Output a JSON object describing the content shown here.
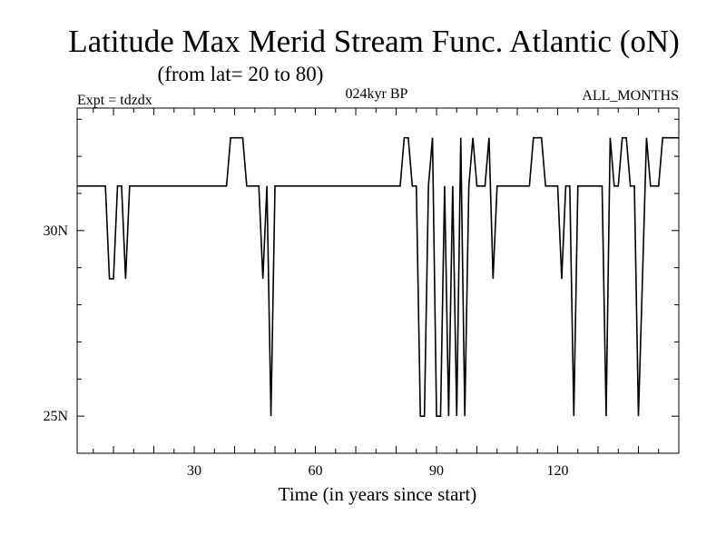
{
  "chart_data": {
    "type": "line",
    "title": "Latitude Max Merid Stream Func. Atlantic (oN)",
    "subtitle": "(from lat= 20 to 80)",
    "experiment_label": "Expt = tdzdx",
    "period_label": "024kyr BP",
    "months_label": "ALL_MONTHS",
    "xlabel": "Time (in years since start)",
    "ylabel": "",
    "xlim": [
      1,
      150
    ],
    "ylim": [
      24,
      33.3
    ],
    "x_ticks": [
      30,
      60,
      90,
      120
    ],
    "x_tick_labels": [
      "30",
      "60",
      "90",
      "120"
    ],
    "y_ticks": [
      25,
      30
    ],
    "y_tick_labels": [
      "25N",
      "30N"
    ],
    "series": [
      {
        "name": "Latitude Max Merid Stream Func. Atlantic",
        "x": [
          1,
          8,
          9,
          10,
          11,
          12,
          13,
          14,
          15,
          38,
          39,
          42,
          43,
          44,
          45,
          46,
          47,
          48,
          49,
          50,
          81,
          82,
          83,
          84,
          85,
          86,
          87,
          88,
          89,
          90,
          91,
          92,
          93,
          94,
          95,
          96,
          97,
          98,
          99,
          100,
          101,
          102,
          103,
          104,
          105,
          106,
          107,
          113,
          114,
          116,
          117,
          118,
          119,
          120,
          121,
          122,
          123,
          124,
          125,
          131,
          132,
          133,
          134,
          135,
          136,
          137,
          138,
          139,
          140,
          141,
          142,
          143,
          144,
          145,
          146,
          147,
          148,
          149,
          150
        ],
        "y": [
          31.2,
          31.2,
          28.7,
          28.7,
          31.2,
          31.2,
          28.7,
          31.2,
          31.2,
          31.2,
          32.5,
          32.5,
          31.2,
          31.2,
          31.2,
          31.2,
          28.7,
          31.2,
          25.0,
          31.2,
          31.2,
          32.5,
          32.5,
          31.2,
          31.2,
          25.0,
          25.0,
          31.2,
          32.5,
          25.0,
          25.0,
          31.2,
          25.0,
          31.2,
          25.0,
          32.5,
          25.0,
          31.2,
          32.5,
          31.2,
          31.2,
          31.2,
          32.5,
          28.7,
          31.2,
          31.2,
          31.2,
          31.2,
          32.5,
          32.5,
          31.2,
          31.2,
          31.2,
          31.2,
          28.7,
          31.2,
          31.2,
          25.0,
          31.2,
          31.2,
          25.0,
          32.5,
          31.2,
          31.2,
          32.5,
          32.5,
          31.2,
          31.2,
          25.0,
          28.7,
          32.5,
          31.2,
          31.2,
          31.2,
          32.5,
          32.5,
          32.5,
          32.5,
          32.5
        ]
      }
    ]
  }
}
